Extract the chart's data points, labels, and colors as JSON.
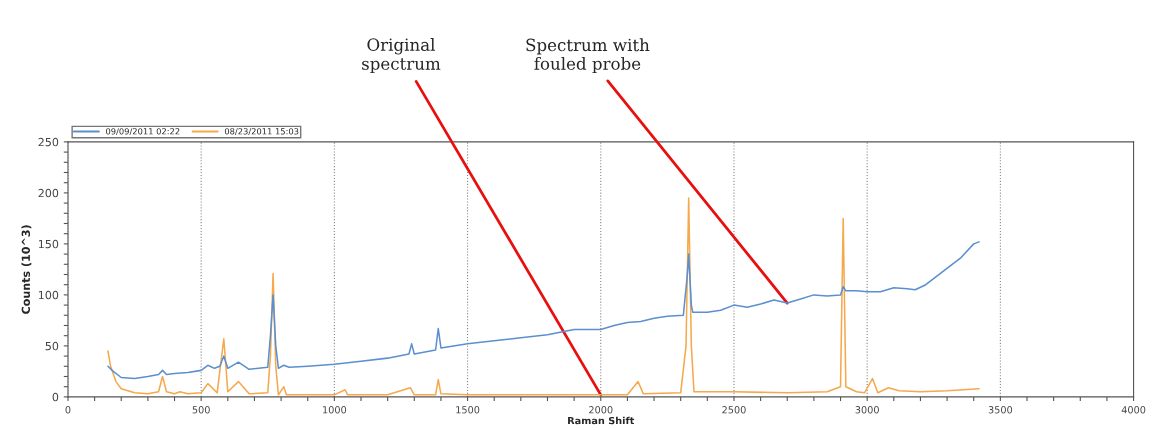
{
  "chart_data": {
    "type": "line",
    "xlabel": "Raman Shift",
    "ylabel": "Counts (10^3)",
    "xlim": [
      0,
      4000
    ],
    "xticks": [
      0,
      500,
      1000,
      1500,
      2000,
      2500,
      3000,
      3500,
      4000
    ],
    "ylim": [
      0,
      250
    ],
    "yticks": [
      0,
      50,
      100,
      150,
      200,
      250
    ],
    "grid": "x",
    "legend": "top left",
    "marker": "none",
    "line_style": "solid",
    "series": [
      {
        "name": "09/09/2011 02:22",
        "color": "#5b8fd0",
        "x": [
          150,
          170,
          200,
          250,
          300,
          340,
          355,
          370,
          400,
          450,
          500,
          525,
          550,
          570,
          585,
          600,
          640,
          680,
          750,
          760,
          770,
          780,
          790,
          810,
          830,
          900,
          1000,
          1100,
          1200,
          1280,
          1290,
          1300,
          1380,
          1390,
          1400,
          1500,
          1600,
          1700,
          1800,
          1900,
          2000,
          2050,
          2100,
          2150,
          2200,
          2250,
          2310,
          2325,
          2330,
          2340,
          2345,
          2400,
          2450,
          2500,
          2550,
          2600,
          2650,
          2700,
          2750,
          2800,
          2850,
          2900,
          2910,
          2920,
          2960,
          3000,
          3050,
          3100,
          3150,
          3180,
          3220,
          3280,
          3350,
          3400,
          3420
        ],
        "values": [
          30,
          25,
          19,
          18,
          20,
          22,
          26,
          22,
          23,
          24,
          26,
          31,
          28,
          30,
          40,
          28,
          34,
          27,
          29,
          60,
          100,
          50,
          28,
          31,
          29,
          30,
          32,
          35,
          38,
          42,
          52,
          42,
          46,
          67,
          48,
          52,
          55,
          58,
          61,
          66,
          66,
          70,
          73,
          74,
          77,
          79,
          80,
          120,
          140,
          90,
          83,
          83,
          85,
          90,
          88,
          91,
          95,
          92,
          96,
          100,
          99,
          100,
          108,
          104,
          104,
          103,
          103,
          107,
          106,
          105,
          110,
          122,
          136,
          150,
          152
        ]
      },
      {
        "name": "08/23/2011 15:03",
        "color": "#f5a84c",
        "x": [
          150,
          160,
          180,
          200,
          250,
          300,
          340,
          355,
          370,
          400,
          420,
          450,
          500,
          525,
          560,
          585,
          600,
          640,
          680,
          750,
          760,
          770,
          780,
          790,
          810,
          820,
          900,
          1000,
          1040,
          1050,
          1200,
          1285,
          1300,
          1380,
          1390,
          1400,
          1500,
          1600,
          1800,
          2000,
          2100,
          2140,
          2160,
          2300,
          2320,
          2330,
          2340,
          2350,
          2500,
          2700,
          2850,
          2900,
          2910,
          2920,
          2960,
          2990,
          3020,
          3040,
          3080,
          3120,
          3200,
          3300,
          3420
        ],
        "values": [
          45,
          30,
          15,
          8,
          4,
          3,
          5,
          20,
          5,
          3,
          5,
          3,
          4,
          13,
          4,
          57,
          5,
          15,
          3,
          4,
          40,
          121,
          30,
          2,
          10,
          2,
          2,
          2,
          7,
          2,
          2,
          9,
          2,
          2,
          17,
          3,
          2,
          2,
          2,
          2,
          2,
          15,
          3,
          4,
          50,
          195,
          50,
          5,
          5,
          4,
          5,
          10,
          175,
          10,
          5,
          4,
          18,
          4,
          9,
          6,
          5,
          6,
          8
        ]
      }
    ],
    "annotations": [
      {
        "text": "Original\nspectrum",
        "x": 2000,
        "y": 2
      },
      {
        "text": "Spectrum with\nfouled probe",
        "x": 2700,
        "y": 92
      }
    ]
  }
}
